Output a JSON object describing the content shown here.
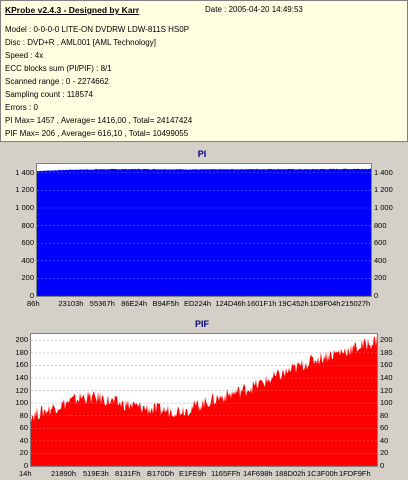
{
  "info": {
    "title": "KProbe v2.4.3 - Designed by Karr",
    "date": "Date : 2005-04-20 14:49:53",
    "lines": [
      "Model : 0-0-0-0 LITE-ON DVDRW LDW-811S   HS0P",
      "Disc : DVD+R , AML001 [AML Technology]",
      "Speed : 4x",
      "ECC blocks sum (PI/PIF) : 8/1",
      "Scanned range : 0 - 2274662",
      "Sampling count : 118574",
      "Errors : 0",
      "PI Max= 1457 , Average= 1416,00 , Total= 24147424",
      "PIF Max= 206 , Average= 616,10 , Total= 10499055"
    ]
  },
  "colors": {
    "pi": "#0000ff",
    "pif": "#ff0000",
    "bg": "#d4d0c8",
    "panel": "#ffffe1"
  },
  "chart_data": [
    {
      "type": "area",
      "title": "PI",
      "ylim": [
        0,
        1500
      ],
      "yticks": [
        0,
        200,
        400,
        600,
        800,
        1000,
        1200,
        1400
      ],
      "ytick_labels": [
        "0",
        "200",
        "400",
        "600",
        "800",
        "1 000",
        "1 200",
        "1 400"
      ],
      "xtick_labels": [
        "86h",
        "23103h",
        "55367h",
        "86E24h",
        "B94F5h",
        "ED224h",
        "124D46h",
        "1601F1h",
        "19C452h",
        "1D8F04h",
        "215027h"
      ],
      "x": [
        0,
        0.1,
        0.2,
        0.3,
        0.4,
        0.5,
        0.6,
        0.7,
        0.8,
        0.9,
        1.0
      ],
      "series": [
        {
          "values": [
            1420,
            1435,
            1440,
            1442,
            1440,
            1438,
            1440,
            1442,
            1440,
            1443,
            1445
          ]
        }
      ]
    },
    {
      "type": "area",
      "title": "PIF",
      "ylim": [
        0,
        210
      ],
      "yticks": [
        0,
        20,
        40,
        60,
        80,
        100,
        120,
        140,
        160,
        180,
        200
      ],
      "ytick_labels": [
        "0",
        "20",
        "40",
        "60",
        "80",
        "100",
        "120",
        "140",
        "160",
        "180",
        "200"
      ],
      "xtick_labels": [
        "14h",
        "21890h",
        "519E3h",
        "8131Fh",
        "B170Dh",
        "E1FE9h",
        "1165FFh",
        "14F698h",
        "188D02h",
        "1C3F00h",
        "1FDF9Fh"
      ],
      "x": [
        0,
        0.05,
        0.1,
        0.15,
        0.2,
        0.25,
        0.3,
        0.35,
        0.4,
        0.45,
        0.5,
        0.55,
        0.6,
        0.65,
        0.7,
        0.75,
        0.8,
        0.85,
        0.9,
        0.95,
        1.0
      ],
      "series": [
        {
          "values": [
            80,
            90,
            100,
            110,
            108,
            100,
            95,
            90,
            88,
            90,
            100,
            110,
            118,
            128,
            140,
            152,
            165,
            175,
            182,
            190,
            200
          ]
        }
      ]
    }
  ]
}
